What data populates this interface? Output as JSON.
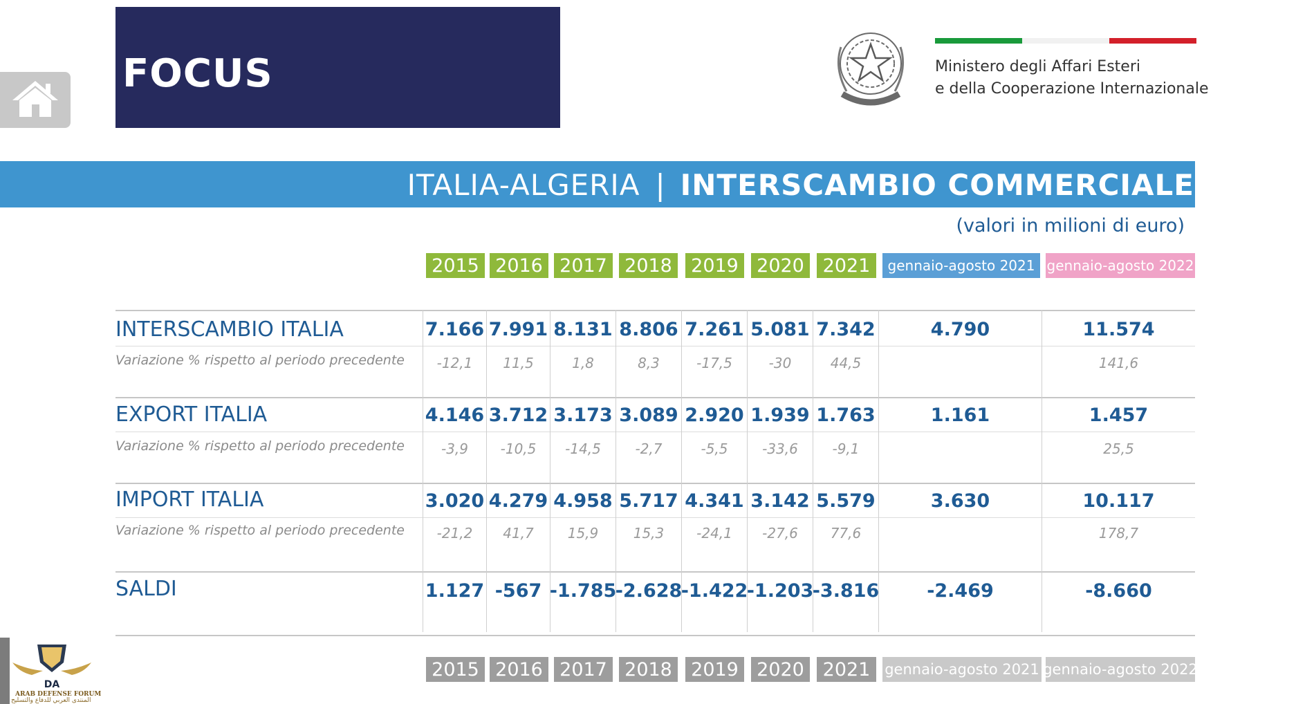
{
  "header": {
    "focus_label": "FOCUS",
    "ministry_line1": "Ministero degli Affari Esteri",
    "ministry_line2": "e della Cooperazione Internazionale",
    "emblem_text": "REPUBBLICA ITALIANA",
    "flag_colors": [
      "#199a3b",
      "#f1f1f1",
      "#d3202a"
    ]
  },
  "title": {
    "country": "ITALIA-ALGERIA",
    "separator": "|",
    "topic": "INTERSCAMBIO COMMERCIALE",
    "units": "(valori in milioni di euro)"
  },
  "columns": [
    "2015",
    "2016",
    "2017",
    "2018",
    "2019",
    "2020",
    "2021",
    "gennaio-agosto 2021",
    "gennaio-agosto 2022"
  ],
  "rows": [
    {
      "label": "INTERSCAMBIO ITALIA",
      "sub_label": "Variazione % rispetto al periodo precedente",
      "values": [
        "7.166",
        "7.991",
        "8.131",
        "8.806",
        "7.261",
        "5.081",
        "7.342",
        "4.790",
        "11.574"
      ],
      "variations": [
        "-12,1",
        "11,5",
        "1,8",
        "8,3",
        "-17,5",
        "-30",
        "44,5",
        "",
        "141,6"
      ]
    },
    {
      "label": "EXPORT ITALIA",
      "sub_label": "Variazione % rispetto al periodo precedente",
      "values": [
        "4.146",
        "3.712",
        "3.173",
        "3.089",
        "2.920",
        "1.939",
        "1.763",
        "1.161",
        "1.457"
      ],
      "variations": [
        "-3,9",
        "-10,5",
        "-14,5",
        "-2,7",
        "-5,5",
        "-33,6",
        "-9,1",
        "",
        "25,5"
      ]
    },
    {
      "label": "IMPORT ITALIA",
      "sub_label": "Variazione % rispetto al periodo precedente",
      "values": [
        "3.020",
        "4.279",
        "4.958",
        "5.717",
        "4.341",
        "3.142",
        "5.579",
        "3.630",
        "10.117"
      ],
      "variations": [
        "-21,2",
        "41,7",
        "15,9",
        "15,3",
        "-24,1",
        "-27,6",
        "77,6",
        "",
        "178,7"
      ]
    },
    {
      "label": "SALDI",
      "values": [
        "1.127",
        "-567",
        "-1.785",
        "-2.628",
        "-1.422",
        "-1.203",
        "-3.816",
        "-2.469",
        "-8.660"
      ]
    }
  ],
  "watermark": {
    "logo": "DA",
    "line1": "ARAB DEFENSE FORUM",
    "line2": "المنتدى العربي للدفاع والتسليح"
  },
  "colors": {
    "banner": "#262a5d",
    "title_band": "#3f95cf",
    "year_chip": "#8fb93b",
    "period_2021": "#5b9fd6",
    "period_2022": "#f0a3c7",
    "value_text": "#1f5b94"
  },
  "icons": [
    "home-icon",
    "emblem-icon"
  ]
}
